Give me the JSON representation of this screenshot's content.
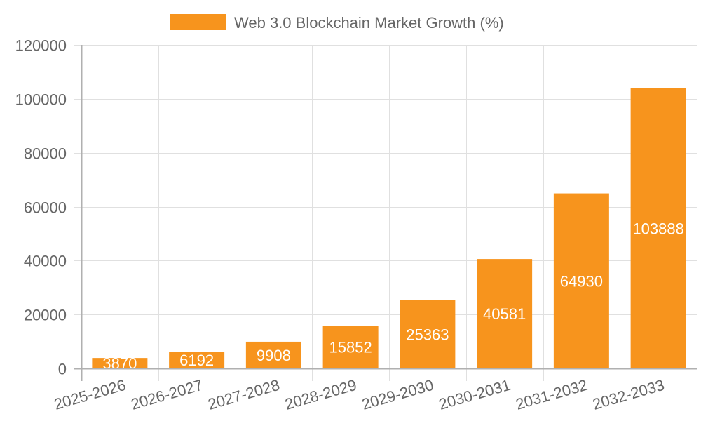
{
  "chart_data": {
    "type": "bar",
    "title": "",
    "legend": [
      {
        "label": "Web 3.0 Blockchain Market Growth (%)",
        "color": "#f7941d"
      }
    ],
    "legend_position": "top",
    "xlabel": "",
    "ylabel": "",
    "categories": [
      "2025-2026",
      "2026-2027",
      "2027-2028",
      "2028-2029",
      "2029-2030",
      "2030-2031",
      "2031-2032",
      "2032-2033"
    ],
    "series": [
      {
        "name": "Web 3.0 Blockchain Market Growth (%)",
        "values": [
          3870,
          6192,
          9908,
          15852,
          25363,
          40581,
          64930,
          103888
        ],
        "color": "#f7941d"
      }
    ],
    "ylim": [
      0,
      120000
    ],
    "yticks": [
      0,
      20000,
      40000,
      60000,
      80000,
      100000,
      120000
    ],
    "grid": true,
    "data_labels": true
  },
  "colors": {
    "bar": "#f7941d",
    "grid": "#e0e0e0",
    "axis": "#b0b0b0",
    "text": "#666666",
    "label": "#ffffff"
  }
}
